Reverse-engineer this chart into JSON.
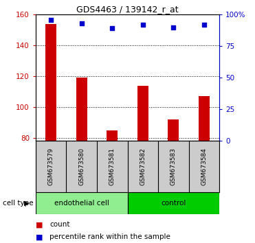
{
  "title": "GDS4463 / 139142_r_at",
  "samples": [
    "GSM673579",
    "GSM673580",
    "GSM673581",
    "GSM673582",
    "GSM673583",
    "GSM673584"
  ],
  "counts": [
    154,
    119,
    85,
    114,
    92,
    107
  ],
  "percentiles": [
    96,
    93,
    89,
    92,
    90,
    92
  ],
  "ylim_left": [
    78,
    160
  ],
  "ylim_right": [
    0,
    100
  ],
  "yticks_left": [
    80,
    100,
    120,
    140,
    160
  ],
  "yticks_right": [
    0,
    25,
    50,
    75,
    100
  ],
  "bar_color": "#cc0000",
  "dot_color": "#0000cc",
  "groups": [
    {
      "label": "endothelial cell",
      "indices": [
        0,
        1,
        2
      ],
      "color": "#90ee90"
    },
    {
      "label": "control",
      "indices": [
        3,
        4,
        5
      ],
      "color": "#00cc00"
    }
  ],
  "group_label": "cell type",
  "legend_count_label": "count",
  "legend_percentile_label": "percentile rank within the sample",
  "background_color": "#ffffff",
  "tick_label_color_left": "#cc0000",
  "tick_label_color_right": "#0000cc",
  "bar_width": 0.35,
  "sample_box_color": "#cccccc"
}
